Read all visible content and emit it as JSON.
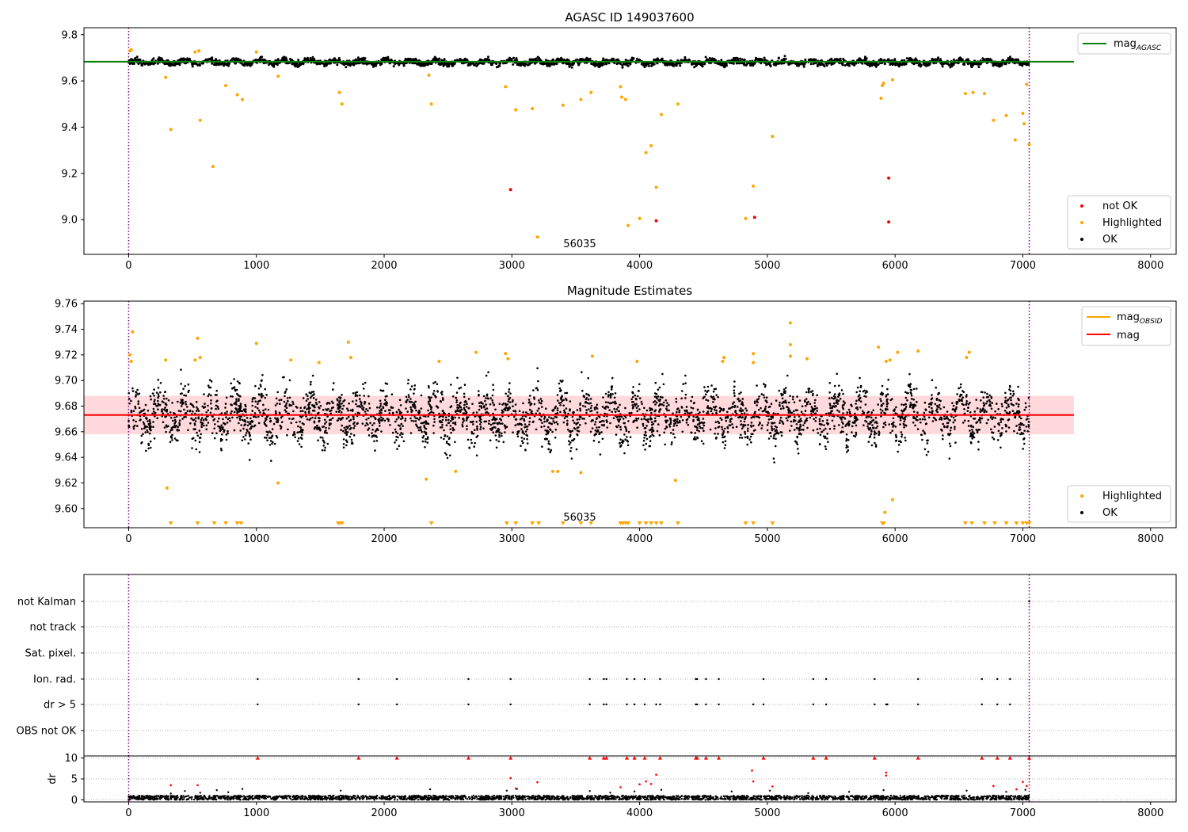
{
  "figure": {
    "colors": {
      "ok": "#000000",
      "highlighted": "#ffa500",
      "not_ok": "#ff0000",
      "mag_agasc": "#008000",
      "mag_obsid": "#ffa500",
      "mag": "#ff0000",
      "band": "#ffc0c4",
      "vline": "#800080",
      "grid": "#b0b0b0"
    }
  },
  "chart_data": [
    {
      "type": "scatter",
      "title": "AGASC ID 149037600",
      "annotation": "56035",
      "xlim": [
        -350,
        8200
      ],
      "ylim": [
        8.85,
        9.83
      ],
      "xticks": [
        "0",
        "1000",
        "2000",
        "3000",
        "4000",
        "5000",
        "6000",
        "7000",
        "8000"
      ],
      "yticks": [
        "9.0",
        "9.2",
        "9.4",
        "9.6",
        "9.8"
      ],
      "vlines": [
        0,
        7050
      ],
      "hlines": [
        {
          "name": "mag_AGASC",
          "y": 9.683,
          "x_range": [
            -350,
            7400
          ],
          "color": "green"
        }
      ],
      "legend_top": {
        "position": "top-right",
        "entries": [
          "mag_AGASC"
        ],
        "label_main": "mag",
        "label_sub": "AGASC"
      },
      "legend_bottom": {
        "position": "lower-right",
        "entries": [
          "not OK",
          "Highlighted",
          "OK"
        ]
      },
      "ok_band": {
        "center": 9.681,
        "half_width": 0.018,
        "x_range": [
          0,
          7050
        ],
        "description": "dense band of OK points with oscillation"
      },
      "series": [
        {
          "name": "not OK",
          "color": "red",
          "points": [
            [
              2990,
              9.13
            ],
            [
              4130,
              8.995
            ],
            [
              4900,
              9.01
            ],
            [
              5950,
              9.18
            ],
            [
              5950,
              8.99
            ]
          ]
        },
        {
          "name": "Highlighted",
          "color": "orange",
          "points": [
            [
              10,
              9.73
            ],
            [
              20,
              9.735
            ],
            [
              290,
              9.615
            ],
            [
              330,
              9.39
            ],
            [
              520,
              9.725
            ],
            [
              550,
              9.73
            ],
            [
              560,
              9.43
            ],
            [
              660,
              9.23
            ],
            [
              760,
              9.58
            ],
            [
              850,
              9.54
            ],
            [
              890,
              9.52
            ],
            [
              1000,
              9.725
            ],
            [
              1170,
              9.62
            ],
            [
              1650,
              9.55
            ],
            [
              1670,
              9.5
            ],
            [
              2350,
              9.625
            ],
            [
              2370,
              9.5
            ],
            [
              2950,
              9.575
            ],
            [
              3030,
              9.475
            ],
            [
              3160,
              9.48
            ],
            [
              3200,
              8.925
            ],
            [
              3400,
              9.495
            ],
            [
              3540,
              9.52
            ],
            [
              3620,
              9.55
            ],
            [
              3850,
              9.575
            ],
            [
              3860,
              9.53
            ],
            [
              3890,
              9.52
            ],
            [
              3910,
              8.975
            ],
            [
              4000,
              9.005
            ],
            [
              4050,
              9.29
            ],
            [
              4090,
              9.32
            ],
            [
              4130,
              9.14
            ],
            [
              4170,
              9.455
            ],
            [
              4300,
              9.5
            ],
            [
              4830,
              9.005
            ],
            [
              4890,
              9.145
            ],
            [
              5040,
              9.36
            ],
            [
              5890,
              9.525
            ],
            [
              5900,
              9.58
            ],
            [
              5910,
              9.59
            ],
            [
              5980,
              9.605
            ],
            [
              6550,
              9.545
            ],
            [
              6610,
              9.55
            ],
            [
              6700,
              9.545
            ],
            [
              6770,
              9.43
            ],
            [
              6870,
              9.45
            ],
            [
              6940,
              9.345
            ],
            [
              7000,
              9.46
            ],
            [
              7010,
              9.415
            ],
            [
              7030,
              9.585
            ],
            [
              7050,
              9.325
            ]
          ]
        }
      ]
    },
    {
      "type": "scatter",
      "title": "Magnitude Estimates",
      "annotation": "56035",
      "xlim": [
        -350,
        8200
      ],
      "ylim": [
        9.585,
        9.762
      ],
      "xticks": [
        "0",
        "1000",
        "2000",
        "3000",
        "4000",
        "5000",
        "6000",
        "7000",
        "8000"
      ],
      "yticks": [
        "9.60",
        "9.62",
        "9.64",
        "9.66",
        "9.68",
        "9.70",
        "9.72",
        "9.74",
        "9.76"
      ],
      "vlines": [
        0,
        7050
      ],
      "hlines": [
        {
          "name": "mag",
          "y": 9.673,
          "x_range": [
            -350,
            7400
          ],
          "color": "red"
        }
      ],
      "band": {
        "y_range": [
          9.658,
          9.688
        ],
        "x_range": [
          -350,
          7400
        ]
      },
      "legend_top": {
        "position": "top-right",
        "entries": [
          "mag_OBSID",
          "mag"
        ],
        "label_main": "mag",
        "label_sub": "OBSID",
        "label_mag": "mag"
      },
      "legend_bottom": {
        "position": "lower-right",
        "entries": [
          "Highlighted",
          "OK"
        ]
      },
      "ok_band": {
        "center": 9.673,
        "half_width": 0.028,
        "x_range": [
          0,
          7050
        ]
      },
      "series": [
        {
          "name": "Highlighted",
          "color": "orange",
          "points": [
            [
              10,
              9.72
            ],
            [
              20,
              9.715
            ],
            [
              30,
              9.738
            ],
            [
              290,
              9.716
            ],
            [
              300,
              9.616
            ],
            [
              520,
              9.716
            ],
            [
              540,
              9.733
            ],
            [
              560,
              9.718
            ],
            [
              1000,
              9.729
            ],
            [
              1170,
              9.62
            ],
            [
              1270,
              9.716
            ],
            [
              1490,
              9.714
            ],
            [
              1720,
              9.73
            ],
            [
              1740,
              9.718
            ],
            [
              2330,
              9.623
            ],
            [
              2430,
              9.715
            ],
            [
              2560,
              9.629
            ],
            [
              2720,
              9.722
            ],
            [
              2950,
              9.721
            ],
            [
              2970,
              9.717
            ],
            [
              3320,
              9.629
            ],
            [
              3360,
              9.629
            ],
            [
              3540,
              9.628
            ],
            [
              3630,
              9.719
            ],
            [
              3980,
              9.715
            ],
            [
              4280,
              9.622
            ],
            [
              4650,
              9.715
            ],
            [
              4660,
              9.718
            ],
            [
              4890,
              9.714
            ],
            [
              4890,
              9.721
            ],
            [
              5180,
              9.745
            ],
            [
              5180,
              9.728
            ],
            [
              5180,
              9.719
            ],
            [
              5310,
              9.717
            ],
            [
              5870,
              9.726
            ],
            [
              5920,
              9.597
            ],
            [
              5930,
              9.715
            ],
            [
              5960,
              9.716
            ],
            [
              5980,
              9.607
            ],
            [
              6020,
              9.722
            ],
            [
              6180,
              9.723
            ],
            [
              6560,
              9.718
            ],
            [
              6580,
              9.722
            ]
          ]
        }
      ],
      "below_limit_markers": [
        330,
        540,
        670,
        760,
        850,
        880,
        1640,
        1650,
        1670,
        2370,
        2960,
        3030,
        3160,
        3210,
        3400,
        3540,
        3620,
        3850,
        3870,
        3890,
        3910,
        4000,
        4050,
        4090,
        4130,
        4170,
        4300,
        4830,
        4890,
        5040,
        5900,
        5910,
        6550,
        6600,
        6700,
        6780,
        6870,
        6950,
        7000,
        7030,
        7050
      ]
    },
    {
      "type": "scatter",
      "title": "",
      "xlim": [
        -350,
        8200
      ],
      "xticks": [
        "0",
        "1000",
        "2000",
        "3000",
        "4000",
        "5000",
        "6000",
        "7000",
        "8000"
      ],
      "vlines": [
        0,
        7050
      ],
      "flag_rows": [
        "not Kalman",
        "not track",
        "Sat. pixel.",
        "Ion. rad.",
        "dr > 5",
        "OBS not OK"
      ],
      "flag_points": {
        "not Kalman": [
          7050
        ],
        "not track": [],
        "Sat. pixel.": [],
        "Ion. rad.": [
          1010,
          1800,
          2100,
          2660,
          2990,
          3610,
          3720,
          3740,
          3900,
          3960,
          4040,
          4160,
          4440,
          4450,
          4520,
          4620,
          4970,
          5360,
          5460,
          5840,
          6180,
          6680,
          6800,
          6900
        ],
        "dr > 5": [
          1010,
          1800,
          2100,
          2660,
          2990,
          3610,
          3720,
          3740,
          3900,
          3960,
          4040,
          4130,
          4160,
          4440,
          4450,
          4520,
          4620,
          4890,
          4970,
          5360,
          5460,
          5840,
          5930,
          5940,
          6180,
          6680,
          6800,
          6900
        ],
        "OBS not OK": []
      }
    },
    {
      "type": "scatter",
      "ylabel": "dr",
      "xlim": [
        -350,
        8200
      ],
      "ylim": [
        -0.5,
        10.5
      ],
      "yticks": [
        "0",
        "5",
        "10"
      ],
      "xticks": [
        "0",
        "1000",
        "2000",
        "3000",
        "4000",
        "5000",
        "6000",
        "7000",
        "8000"
      ],
      "vlines": [
        0,
        7050
      ],
      "clipped_at": 10,
      "series": [
        {
          "name": "clipped",
          "color": "red",
          "y": 10,
          "x": [
            1010,
            1800,
            2100,
            2660,
            2990,
            3610,
            3720,
            3740,
            3900,
            3960,
            4040,
            4160,
            4440,
            4450,
            4520,
            4620,
            4970,
            5360,
            5460,
            5840,
            6180,
            6680,
            6800,
            6900,
            7050
          ]
        },
        {
          "name": "outliers",
          "color": "red",
          "points": [
            [
              330,
              3.5
            ],
            [
              540,
              3.5
            ],
            [
              2990,
              5.2
            ],
            [
              3030,
              2.7
            ],
            [
              3200,
              4.2
            ],
            [
              3850,
              3.0
            ],
            [
              4000,
              3.7
            ],
            [
              4050,
              4.4
            ],
            [
              4090,
              3.8
            ],
            [
              4130,
              6.0
            ],
            [
              4880,
              7.0
            ],
            [
              4890,
              4.4
            ],
            [
              5040,
              3.2
            ],
            [
              5930,
              6.5
            ],
            [
              5930,
              5.8
            ],
            [
              6770,
              3.3
            ],
            [
              6950,
              2.5
            ],
            [
              7000,
              4.3
            ],
            [
              7030,
              3.3
            ]
          ]
        },
        {
          "name": "OK",
          "color": "black",
          "baseline": [
            0,
            1
          ],
          "points": [
            [
              330,
              1.5
            ],
            [
              440,
              2.1
            ],
            [
              560,
              1.7
            ],
            [
              690,
              2.3
            ],
            [
              780,
              1.8
            ],
            [
              890,
              2.6
            ],
            [
              1660,
              2.2
            ],
            [
              2360,
              2.5
            ],
            [
              2960,
              2.2
            ],
            [
              3040,
              2.6
            ],
            [
              3610,
              2.1
            ],
            [
              3770,
              1.7
            ],
            [
              3960,
              2.0
            ],
            [
              4170,
              2.4
            ],
            [
              4720,
              2.0
            ],
            [
              5020,
              2.2
            ],
            [
              5320,
              1.6
            ],
            [
              5640,
              1.9
            ],
            [
              5910,
              2.3
            ],
            [
              6560,
              2.2
            ],
            [
              6870,
              1.9
            ],
            [
              7020,
              2.4
            ]
          ]
        }
      ]
    }
  ]
}
